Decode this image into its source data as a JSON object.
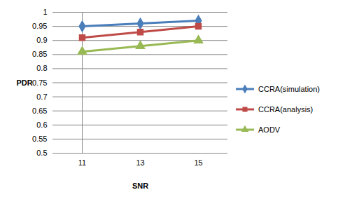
{
  "chart_data": {
    "type": "line",
    "x_label": "SNR",
    "y_label": "PDR",
    "categories": [
      "11",
      "13",
      "15"
    ],
    "series": [
      {
        "name": "CCRA(simulation)",
        "color": "#4a7ebb",
        "marker": "diamond",
        "values": [
          0.95,
          0.96,
          0.97
        ]
      },
      {
        "name": "CCRA(analysis)",
        "color": "#be4b48",
        "marker": "square",
        "values": [
          0.91,
          0.93,
          0.95
        ]
      },
      {
        "name": "AODV",
        "color": "#98b954",
        "marker": "triangle",
        "values": [
          0.86,
          0.88,
          0.9
        ]
      }
    ],
    "ylim": [
      0.5,
      1
    ],
    "yticks": [
      0.5,
      0.55,
      0.6,
      0.65,
      0.7,
      0.75,
      0.8,
      0.85,
      0.9,
      0.95,
      1
    ],
    "grid": true,
    "legend": "right"
  }
}
